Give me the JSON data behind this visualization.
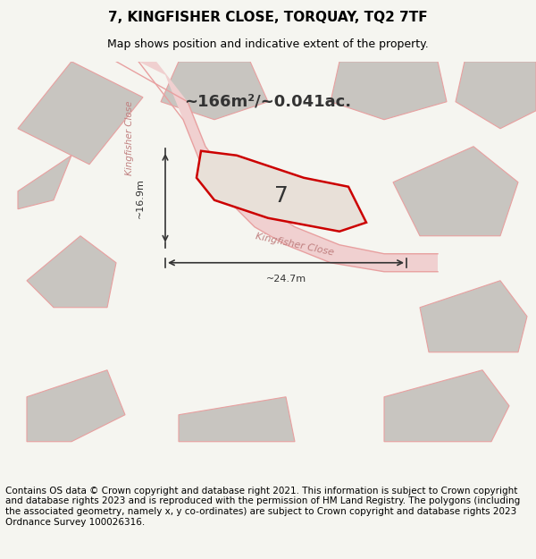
{
  "title": "7, KINGFISHER CLOSE, TORQUAY, TQ2 7TF",
  "subtitle": "Map shows position and indicative extent of the property.",
  "footer": "Contains OS data © Crown copyright and database right 2021. This information is subject to Crown copyright and database rights 2023 and is reproduced with the permission of HM Land Registry. The polygons (including the associated geometry, namely x, y co-ordinates) are subject to Crown copyright and database rights 2023 Ordnance Survey 100026316.",
  "area_label": "~166m²/~0.041ac.",
  "property_number": "7",
  "dim1_label": "~16.9m",
  "dim2_label": "~24.7m",
  "bg_color": "#f5f5f0",
  "map_bg": "#f0ede8",
  "road_color": "#f5c8c8",
  "highlight_color": "#e8000080",
  "highlight_fill": "#f5c8c820",
  "plot_fill": "#e8e8e8",
  "road_label": "Kingfisher Close",
  "road_label2": "Kingfisher Close",
  "title_fontsize": 11,
  "subtitle_fontsize": 9,
  "footer_fontsize": 7.5
}
